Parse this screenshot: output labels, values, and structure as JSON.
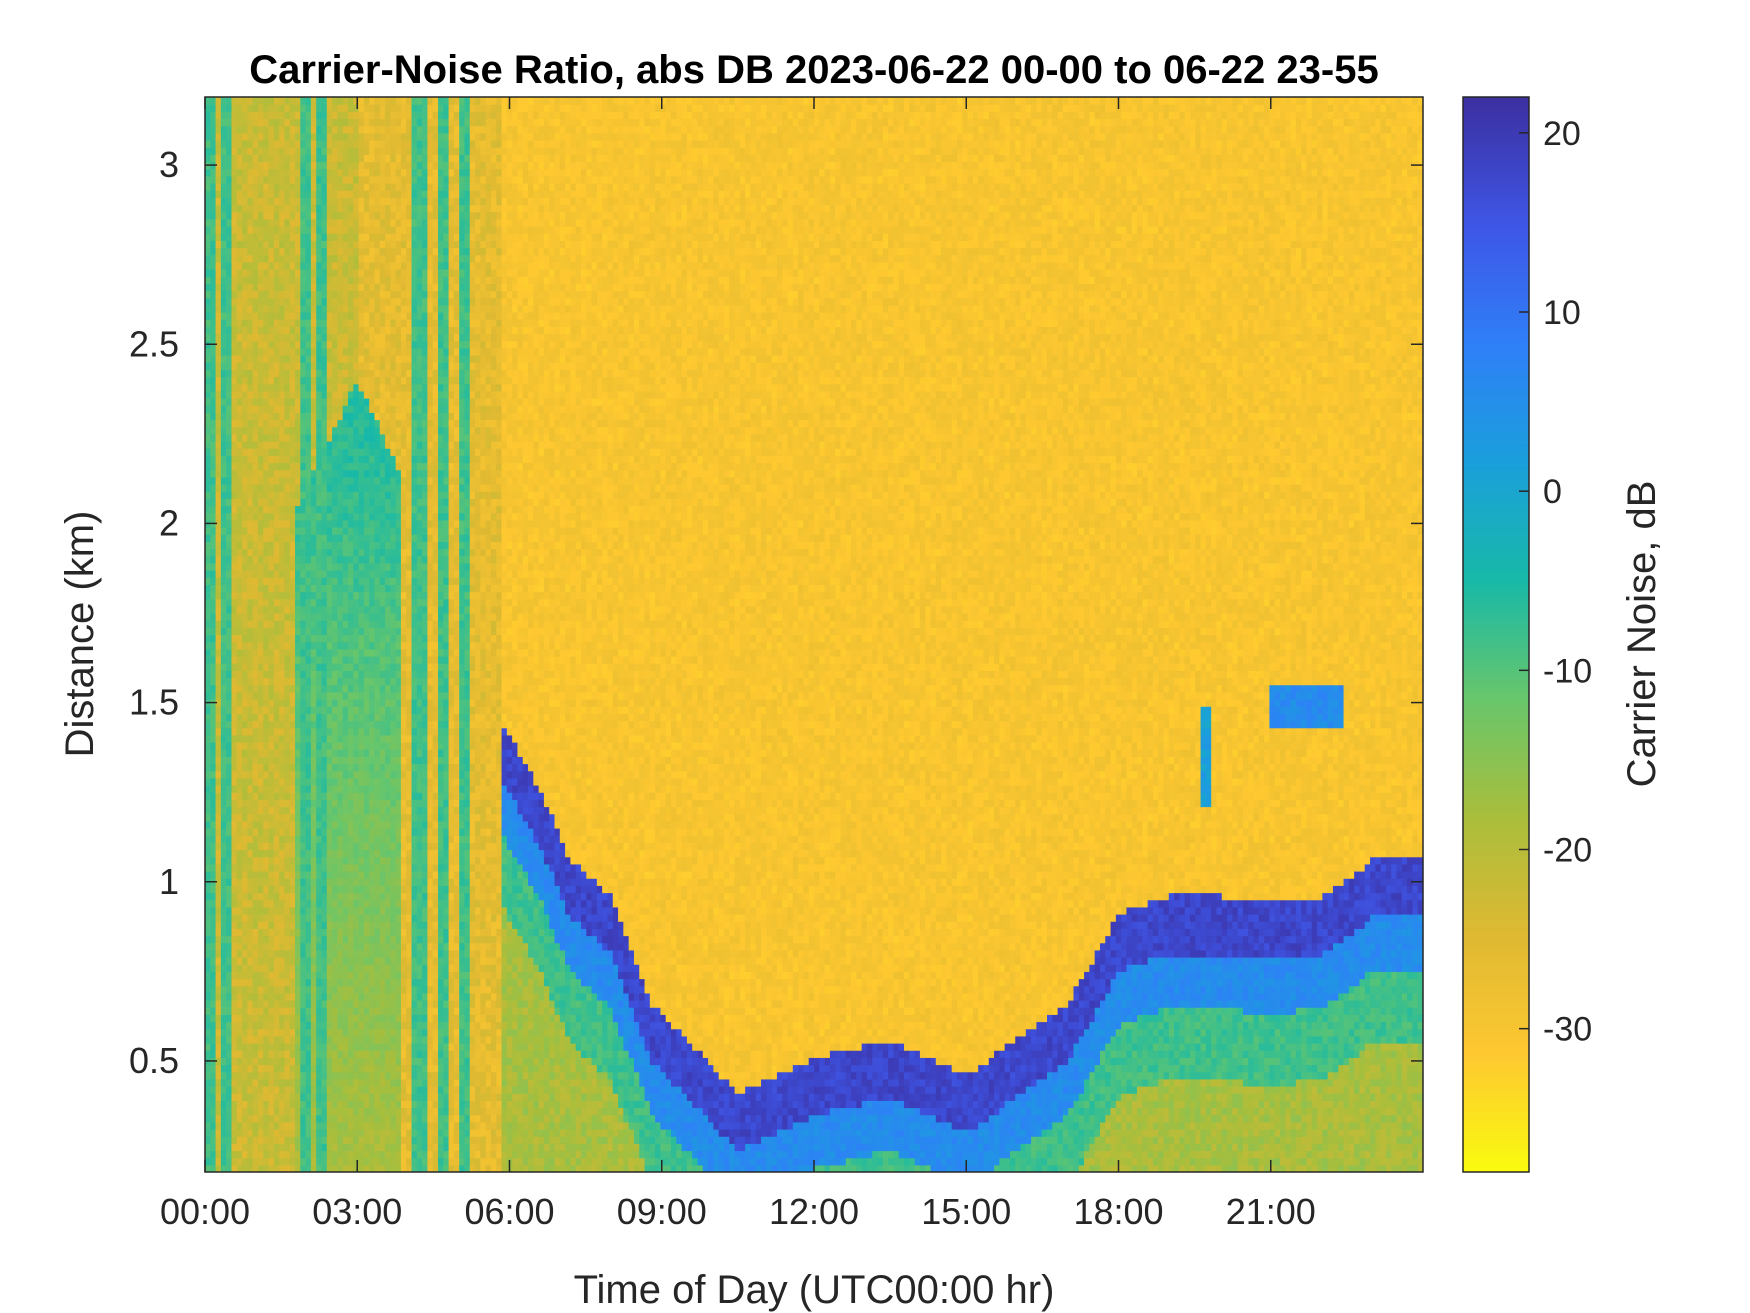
{
  "chart_data": {
    "type": "heatmap",
    "title": "Carrier-Noise Ratio, abs DB 2023-06-22 00-00 to 06-22 23-55",
    "xlabel": "Time of Day (UTC00:00 hr)",
    "ylabel": "Distance (km)",
    "colorbar_label": "Carrier Noise, dB",
    "x_ticks": [
      "00:00",
      "03:00",
      "06:00",
      "09:00",
      "12:00",
      "15:00",
      "18:00",
      "21:00"
    ],
    "x_tick_hours": [
      0,
      3,
      6,
      9,
      12,
      15,
      18,
      21
    ],
    "xlim_hours": [
      0,
      24
    ],
    "y_ticks": [
      "0.5",
      "1",
      "1.5",
      "2",
      "2.5",
      "3"
    ],
    "y_tick_values": [
      0.5,
      1,
      1.5,
      2,
      2.5,
      3
    ],
    "ylim_km": [
      0.19,
      3.19
    ],
    "colorbar_ticks": [
      "20",
      "10",
      "0",
      "-10",
      "-20",
      "-30"
    ],
    "colorbar_tick_values": [
      20,
      10,
      0,
      -10,
      -20,
      -30
    ],
    "clim_db": [
      -38,
      22
    ],
    "colormap": [
      "#f9fb0e",
      "#fec831",
      "#dfb932",
      "#a9be3c",
      "#68c66b",
      "#18b9a8",
      "#1a9fdb",
      "#2f7ff8",
      "#3e56e6",
      "#3c2fa0"
    ],
    "grid": false,
    "background_value_db": -30,
    "features": [
      {
        "description_key": "boundary_layer_top",
        "points": [
          [
            5.8,
            1.4
          ],
          [
            6.6,
            1.2
          ],
          [
            7.2,
            1.0
          ],
          [
            8.0,
            0.9
          ],
          [
            8.8,
            0.6
          ],
          [
            9.5,
            0.5
          ],
          [
            10.5,
            0.35
          ],
          [
            12.0,
            0.45
          ],
          [
            13.5,
            0.5
          ],
          [
            15.0,
            0.4
          ],
          [
            16.0,
            0.5
          ],
          [
            17.0,
            0.6
          ],
          [
            18.0,
            0.85
          ],
          [
            19.0,
            0.9
          ],
          [
            20.0,
            0.9
          ],
          [
            21.0,
            0.88
          ],
          [
            22.0,
            0.9
          ],
          [
            23.0,
            1.0
          ],
          [
            24.0,
            1.0
          ]
        ],
        "value_db": 18
      },
      {
        "description_key": "elevated_cloud",
        "points": [
          [
            21.0,
            1.45
          ],
          [
            22.4,
            1.5
          ]
        ],
        "value_db": 5
      },
      {
        "description_key": "early_plume",
        "points": [
          [
            2.0,
            2.4
          ],
          [
            3.8,
            1.7
          ]
        ],
        "value_db": -5
      }
    ]
  }
}
